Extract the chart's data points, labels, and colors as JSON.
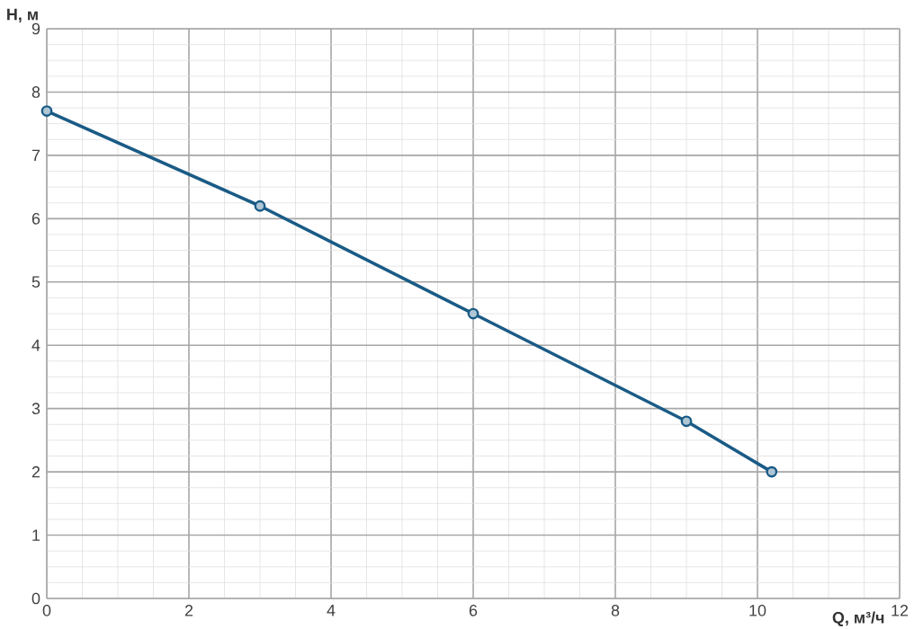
{
  "chart_data": {
    "type": "line",
    "xlabel": "Q, м³/ч",
    "ylabel": "H, м",
    "x": [
      0,
      3,
      6,
      9,
      10.2
    ],
    "series": [
      {
        "color": "#1a5b86",
        "values": [
          7.7,
          6.2,
          4.5,
          2.8,
          2.0
        ]
      }
    ],
    "xlim": [
      0,
      12
    ],
    "xticks": [
      0,
      2,
      4,
      6,
      8,
      10,
      12
    ],
    "ylim": [
      0,
      9
    ],
    "yticks": [
      0,
      1,
      2,
      3,
      4,
      5,
      6,
      7,
      8,
      9
    ],
    "grid": true,
    "marker": "circle",
    "line_style": "solid",
    "legend": false
  }
}
